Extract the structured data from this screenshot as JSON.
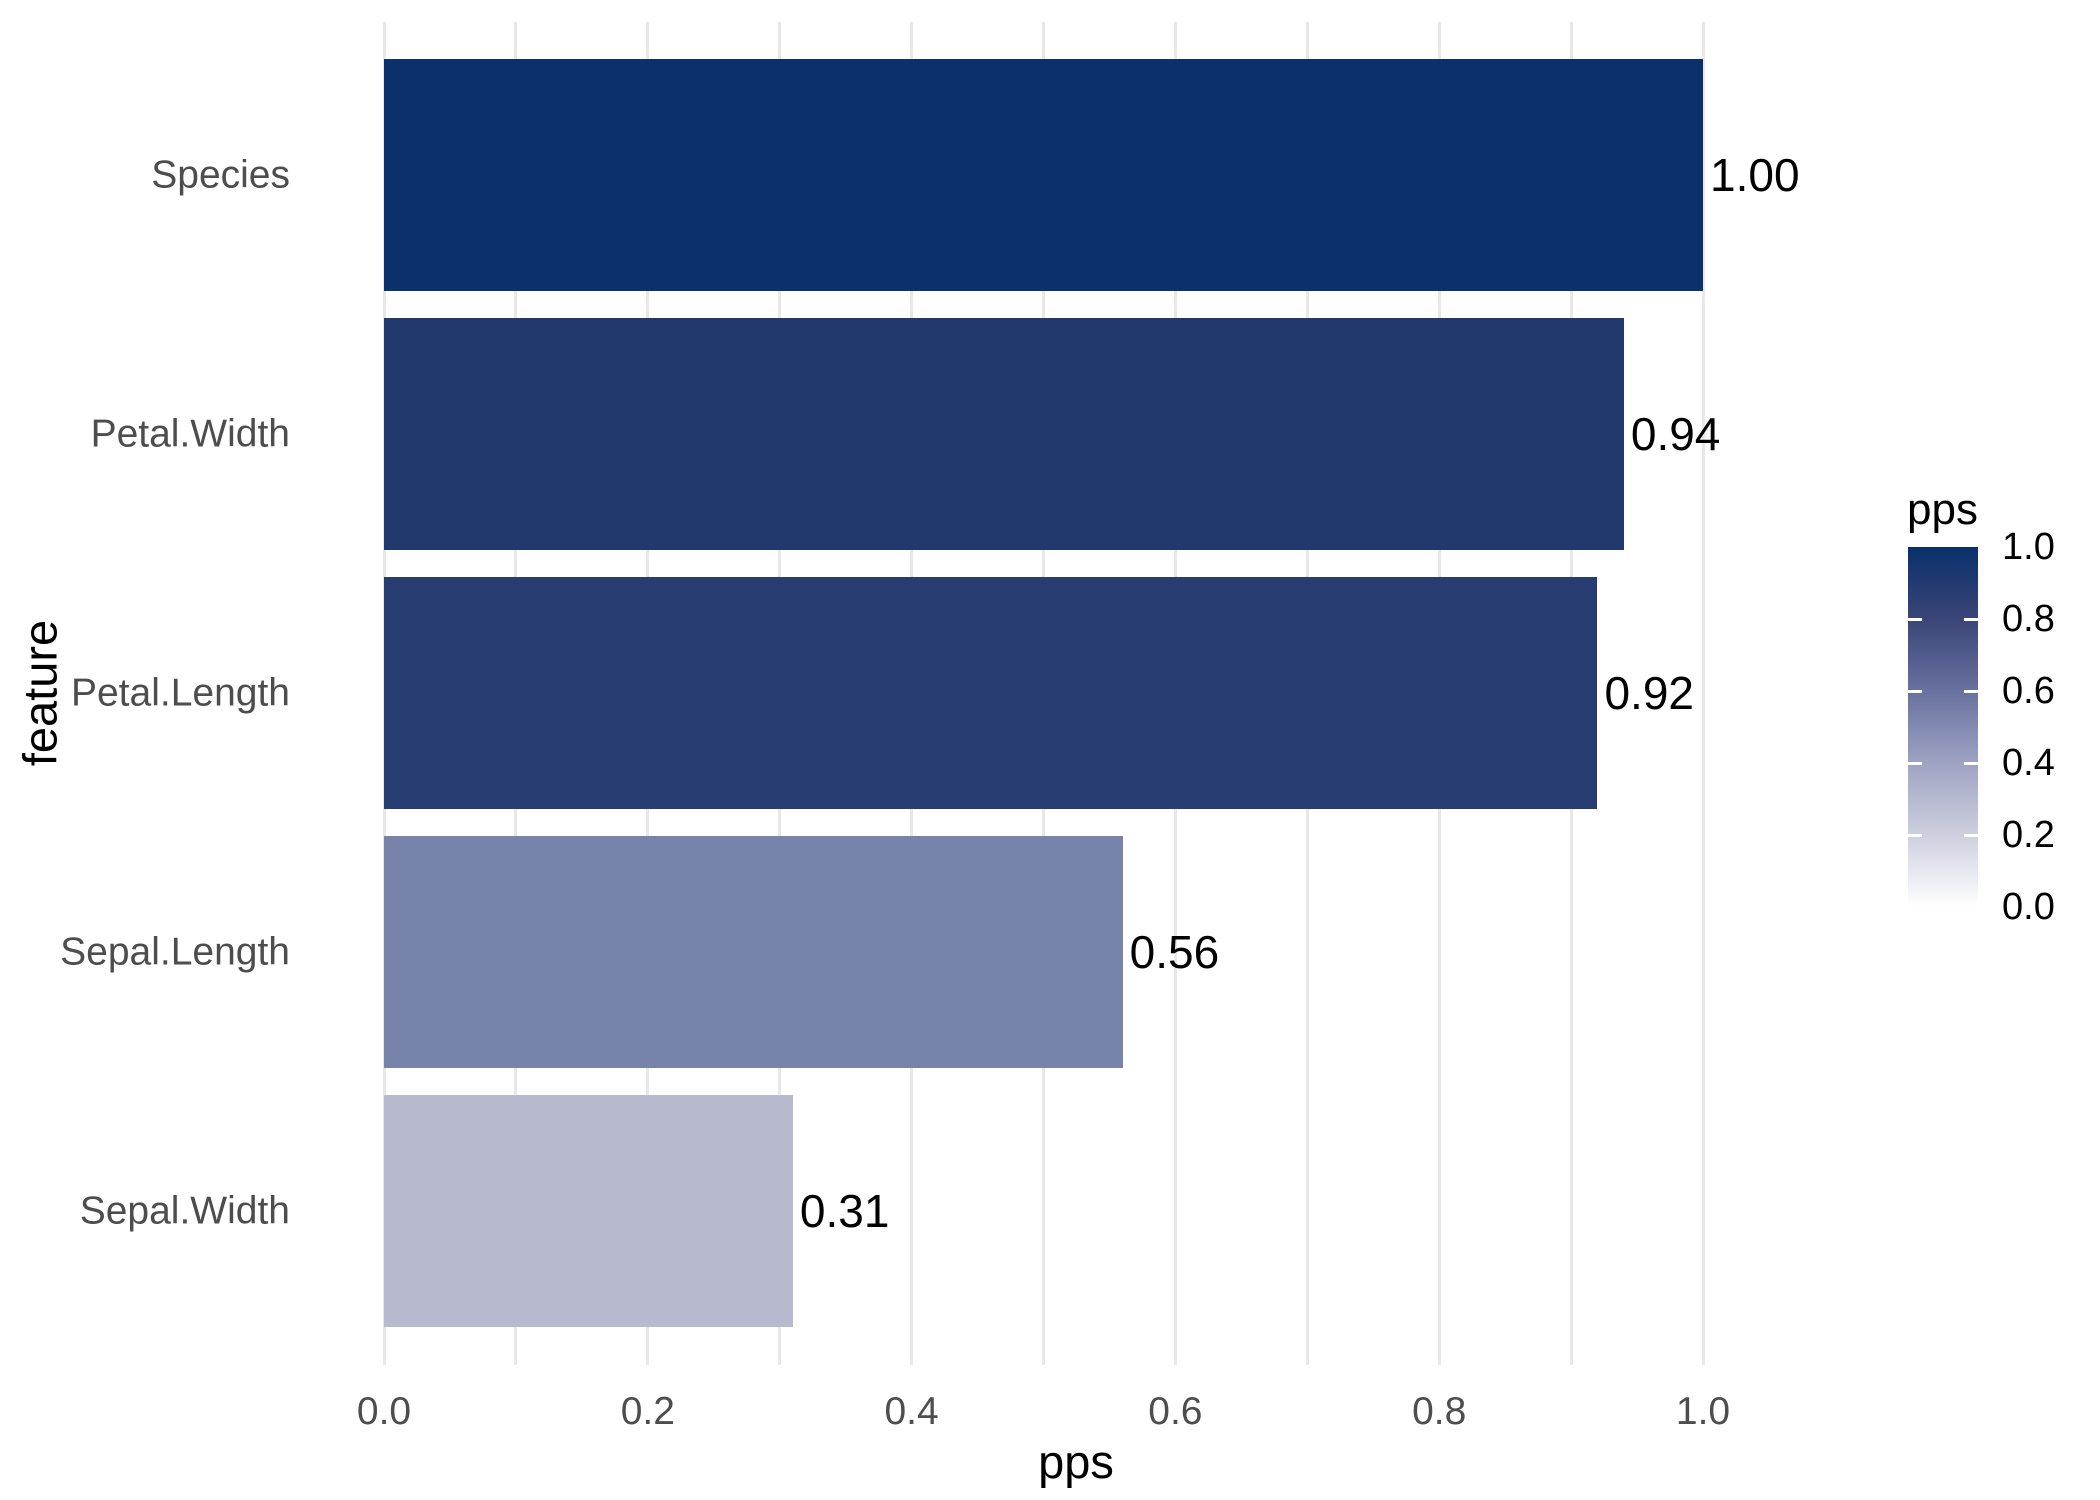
{
  "colors": {
    "background": "#ffffff",
    "gridline": "#e8e8e8",
    "tick_label": "#4d4d4d",
    "axis_title": "#000000",
    "value_label": "#000000",
    "legend_tick_mark": "#ffffff"
  },
  "chart_data": {
    "type": "bar",
    "orientation": "horizontal",
    "title": "",
    "xlabel": "pps",
    "ylabel": "feature",
    "categories": [
      "Species",
      "Petal.Width",
      "Petal.Length",
      "Sepal.Length",
      "Sepal.Width"
    ],
    "values": [
      1.0,
      0.94,
      0.92,
      0.56,
      0.31
    ],
    "value_labels": [
      "1.00",
      "0.94",
      "0.92",
      "0.56",
      "0.31"
    ],
    "bar_colors": [
      "#0a316b",
      "#21396c",
      "#273d71",
      "#7883ac",
      "#b7bacf"
    ],
    "xlim": [
      0,
      1
    ],
    "x_ticks": [
      {
        "value": 0.0,
        "label": "0.0"
      },
      {
        "value": 0.2,
        "label": "0.2"
      },
      {
        "value": 0.4,
        "label": "0.4"
      },
      {
        "value": 0.6,
        "label": "0.6"
      },
      {
        "value": 0.8,
        "label": "0.8"
      },
      {
        "value": 1.0,
        "label": "1.0"
      }
    ],
    "minor_grid_step": 0.1,
    "grid": true,
    "legend": {
      "title": "pps",
      "position": "right",
      "type": "gradient",
      "high_value_at_top": true,
      "labels": [
        {
          "value": 1.0,
          "label": "1.0"
        },
        {
          "value": 0.8,
          "label": "0.8"
        },
        {
          "value": 0.6,
          "label": "0.6"
        },
        {
          "value": 0.4,
          "label": "0.4"
        },
        {
          "value": 0.2,
          "label": "0.2"
        },
        {
          "value": 0.0,
          "label": "0.0"
        }
      ],
      "tick_values": [
        0.8,
        0.6,
        0.4,
        0.2
      ],
      "gradient_stops": [
        {
          "at_value": 1.0,
          "color": "#08306b"
        },
        {
          "at_value": 0.8,
          "color": "#3b4577"
        },
        {
          "at_value": 0.6,
          "color": "#68719f"
        },
        {
          "at_value": 0.4,
          "color": "#9ea3c2"
        },
        {
          "at_value": 0.2,
          "color": "#cdcfdf"
        },
        {
          "at_value": 0.0,
          "color": "#ffffff"
        }
      ]
    }
  }
}
